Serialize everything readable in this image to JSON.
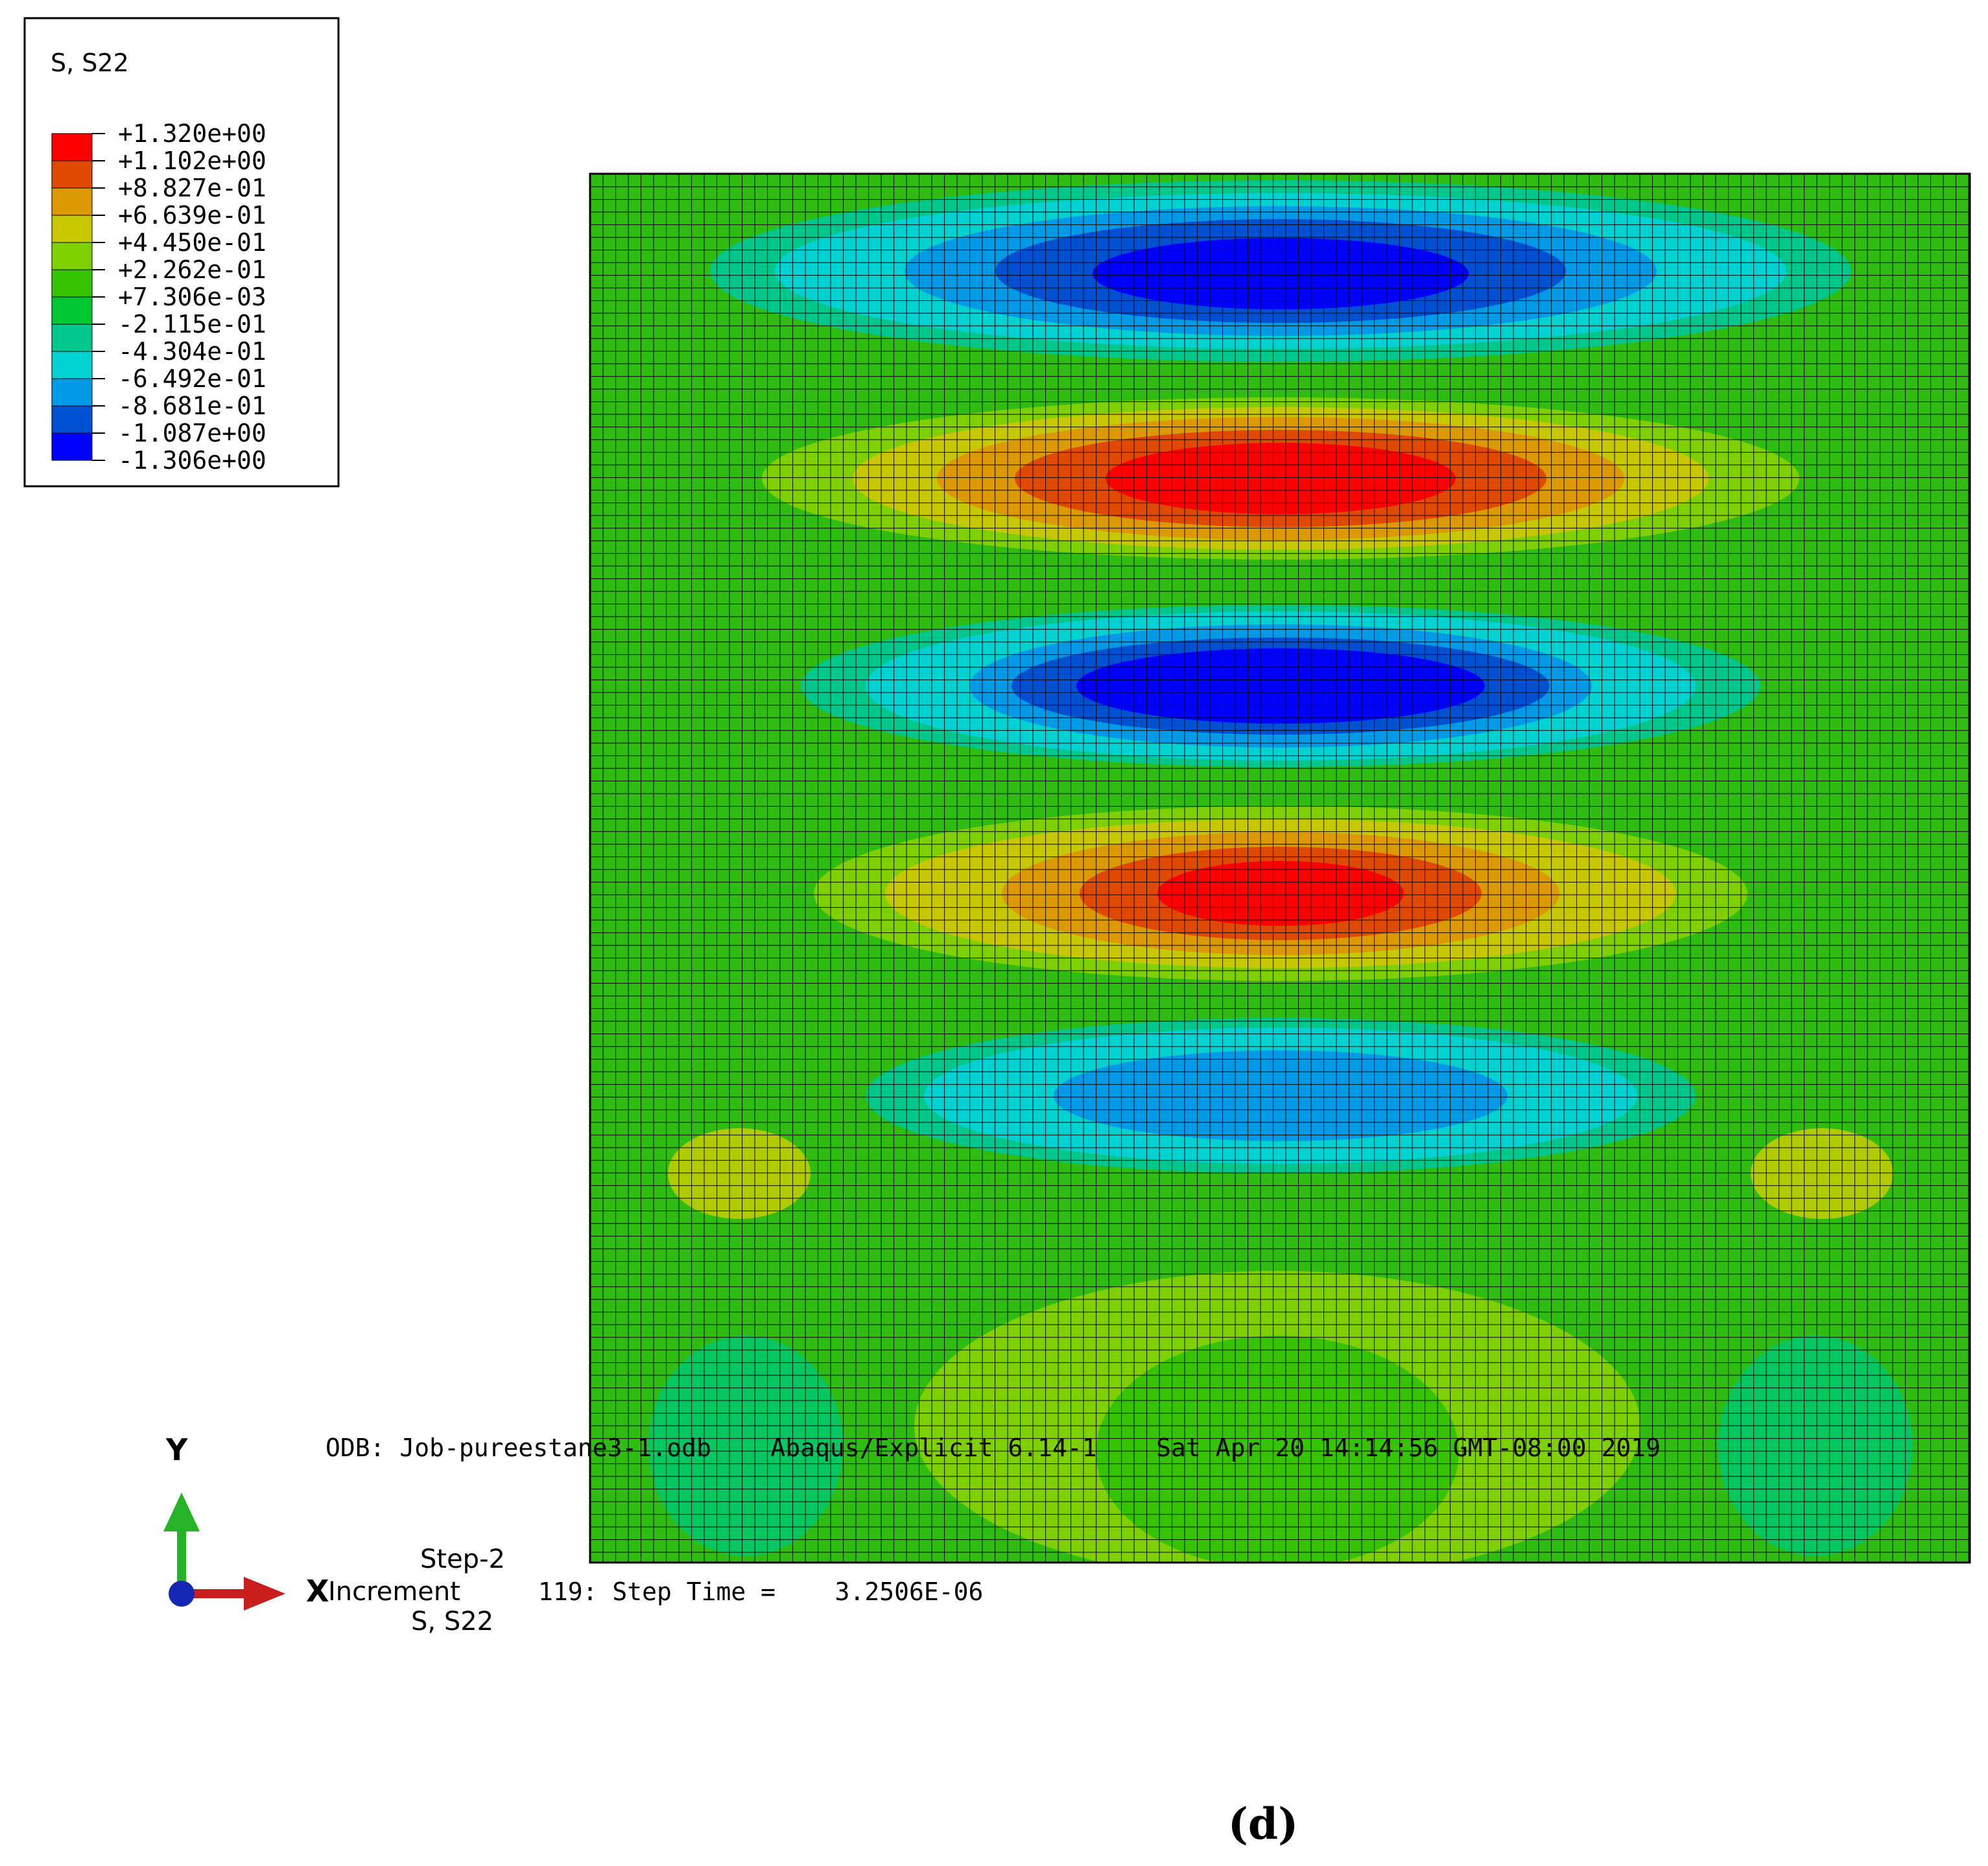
{
  "legend": {
    "title": "S, S22",
    "colors": [
      "#ff0000",
      "#e04a00",
      "#dc9a00",
      "#c8c800",
      "#7ed000",
      "#36c400",
      "#00c832",
      "#00c88c",
      "#00d2d2",
      "#009ae6",
      "#0050d2",
      "#0000ff"
    ],
    "values": [
      "+1.320e+00",
      "+1.102e+00",
      "+8.827e-01",
      "+6.639e-01",
      "+4.450e-01",
      "+2.262e-01",
      "+7.306e-03",
      "-2.115e-01",
      "-4.304e-01",
      "-6.492e-01",
      "-8.681e-01",
      "-1.087e+00",
      "-1.306e+00"
    ]
  },
  "contour": {
    "background_color": "#2fbd12",
    "grid_line_color": "#000000"
  },
  "triad": {
    "y_label": "Y",
    "x_label": "X",
    "y_color": "#27b327",
    "x_color": "#c81e1e",
    "z_color": "#1428b4"
  },
  "info": {
    "odb_line": "ODB: Job-pureestane3-1.odb    Abaqus/Explicit 6.14-1    Sat Apr 20 14:14:56 GMT-08:00 2019",
    "step_label": "Step-2",
    "increment_label": "Increment",
    "increment_value": "119: Step Time =    3.2506E-06",
    "variable_label": "S, S22"
  },
  "caption": "(d)"
}
